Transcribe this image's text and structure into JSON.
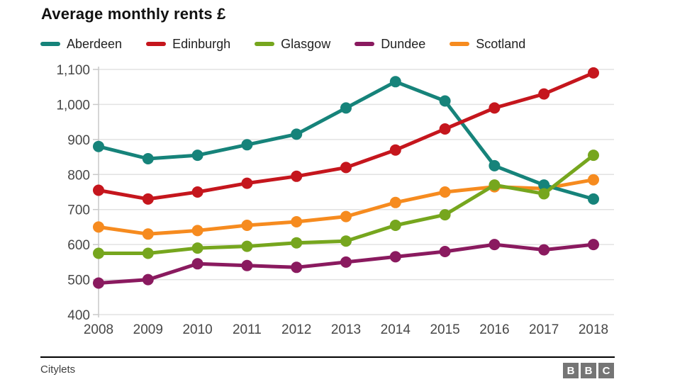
{
  "title": "Average monthly rents £",
  "source_label": "Citylets",
  "logo": {
    "letters": [
      "B",
      "B",
      "C"
    ]
  },
  "styles": {
    "grid_color": "#e2e2e2",
    "axis_color": "#c9c9c9",
    "tick_label_color": "#474747"
  },
  "chart_data": {
    "type": "line",
    "title": "Average monthly rents £",
    "x": [
      2008,
      2009,
      2010,
      2011,
      2012,
      2013,
      2014,
      2015,
      2016,
      2017,
      2018
    ],
    "series": [
      {
        "name": "Aberdeen",
        "color": "#16837a",
        "values": [
          880,
          845,
          855,
          885,
          915,
          990,
          1065,
          1010,
          825,
          770,
          730
        ]
      },
      {
        "name": "Edinburgh",
        "color": "#c5161d",
        "values": [
          755,
          730,
          750,
          775,
          795,
          820,
          870,
          930,
          990,
          1030,
          1090
        ]
      },
      {
        "name": "Glasgow",
        "color": "#76a61e",
        "values": [
          575,
          575,
          590,
          595,
          605,
          610,
          655,
          685,
          770,
          745,
          855
        ]
      },
      {
        "name": "Dundee",
        "color": "#8a1a5f",
        "values": [
          490,
          500,
          545,
          540,
          535,
          550,
          565,
          580,
          600,
          585,
          600
        ]
      },
      {
        "name": "Scotland",
        "color": "#f68b1f",
        "values": [
          650,
          630,
          640,
          655,
          665,
          680,
          720,
          750,
          765,
          760,
          785
        ]
      }
    ],
    "ylim": [
      400,
      1100
    ],
    "yticks": [
      400,
      500,
      600,
      700,
      800,
      900,
      1000,
      1100
    ],
    "grid": true,
    "legend_position": "top"
  }
}
